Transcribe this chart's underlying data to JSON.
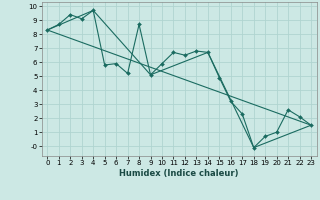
{
  "xlabel": "Humidex (Indice chaleur)",
  "bg_color": "#cce8e4",
  "grid_color": "#b0d4d0",
  "line_color": "#1a6b60",
  "xlim": [
    -0.5,
    23.5
  ],
  "ylim": [
    -0.7,
    10.3
  ],
  "xticks": [
    0,
    1,
    2,
    3,
    4,
    5,
    6,
    7,
    8,
    9,
    10,
    11,
    12,
    13,
    14,
    15,
    16,
    17,
    18,
    19,
    20,
    21,
    22,
    23
  ],
  "yticks": [
    0,
    1,
    2,
    3,
    4,
    5,
    6,
    7,
    8,
    9,
    10
  ],
  "ytick_labels": [
    "-0",
    "1",
    "2",
    "3",
    "4",
    "5",
    "6",
    "7",
    "8",
    "9",
    "10"
  ],
  "line1_x": [
    0,
    1,
    2,
    3,
    4,
    5,
    6,
    7,
    8,
    9,
    10,
    11,
    12,
    13,
    14,
    15,
    16,
    17,
    18,
    19,
    20,
    21,
    22,
    23
  ],
  "line1_y": [
    8.3,
    8.7,
    9.4,
    9.1,
    9.7,
    5.8,
    5.9,
    5.2,
    8.7,
    5.1,
    5.9,
    6.7,
    6.5,
    6.8,
    6.7,
    4.9,
    3.2,
    2.3,
    -0.1,
    0.7,
    1.0,
    2.6,
    2.1,
    1.5
  ],
  "line2_x": [
    0,
    4,
    9,
    14,
    18,
    23
  ],
  "line2_y": [
    8.3,
    9.7,
    5.1,
    6.7,
    -0.1,
    1.5
  ],
  "line3_x": [
    0,
    23
  ],
  "line3_y": [
    8.3,
    1.5
  ],
  "xlabel_fontsize": 6.0,
  "tick_fontsize": 5.0
}
